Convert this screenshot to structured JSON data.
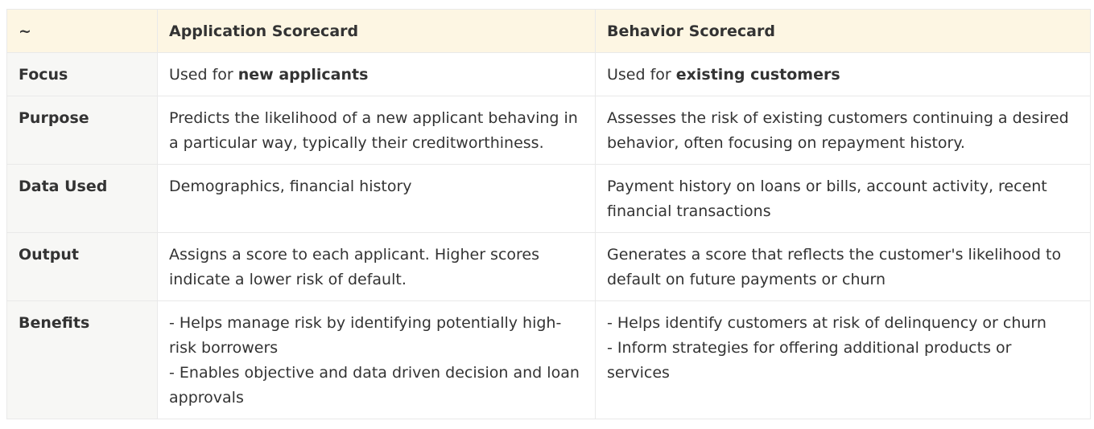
{
  "table": {
    "headers": [
      "~",
      "Application Scorecard",
      "Behavior Scorecard"
    ],
    "rows": [
      {
        "label": "Focus",
        "application": {
          "prefix": "Used for ",
          "bold": "new applicants"
        },
        "behavior": {
          "prefix": "Used for ",
          "bold": "existing customers"
        }
      },
      {
        "label": "Purpose",
        "application": "Predicts the likelihood of a new applicant behaving in a particular way, typically their creditworthiness.",
        "behavior": "Assesses the risk of existing customers continuing a desired behavior, often focusing on repayment history."
      },
      {
        "label": "Data Used",
        "application": "Demographics, financial history",
        "behavior": "Payment history on loans or bills, account activity, recent financial transactions"
      },
      {
        "label": "Output",
        "application": "Assigns a score to each applicant. Higher scores indicate a lower risk of default.",
        "behavior": "Generates a score that reflects the customer's likelihood to default on future payments or churn"
      },
      {
        "label": "Benefits",
        "application": [
          "- Helps manage risk by identifying potentially high-risk borrowers",
          "- Enables objective and data driven decision and loan approvals"
        ],
        "behavior": [
          "- Helps identify customers at risk of delinquency or churn",
          "- Inform strategies for offering additional products or services"
        ]
      }
    ]
  },
  "colors": {
    "header_bg": "#fdf6e3",
    "row_label_bg": "#f7f7f5",
    "border": "#e9e9e9",
    "text": "#333333"
  }
}
